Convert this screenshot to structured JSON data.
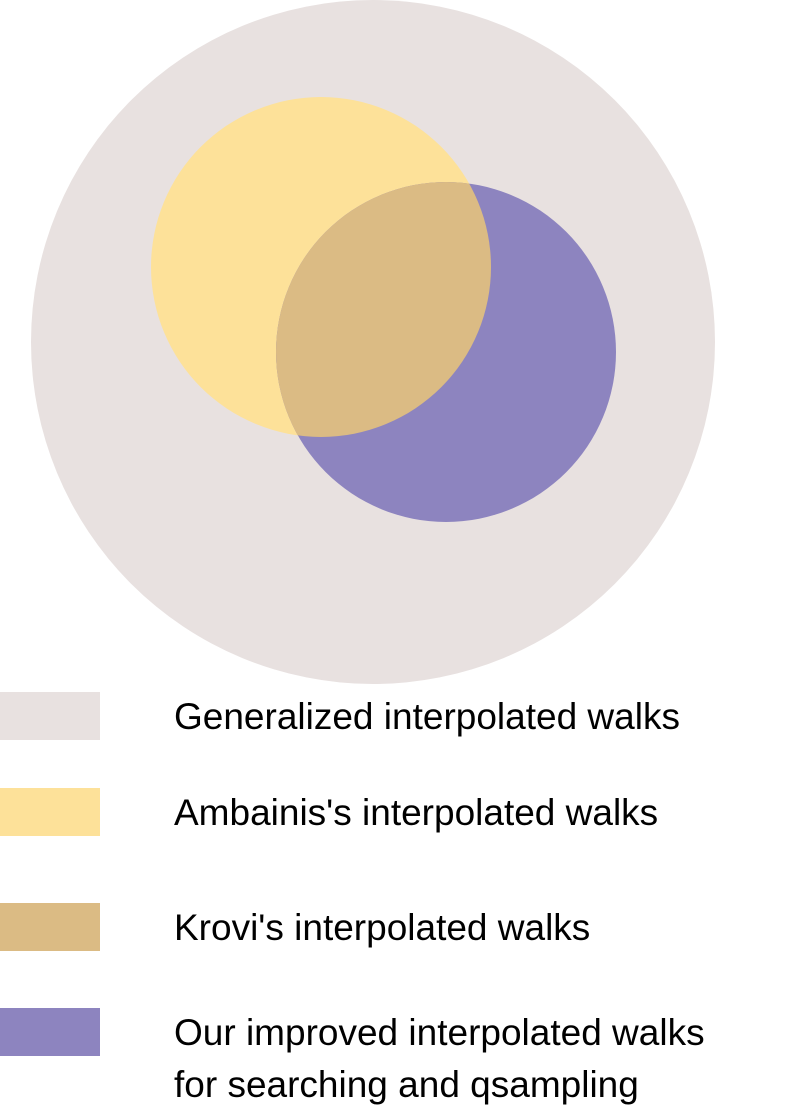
{
  "legend": [
    {
      "label": [
        "Generalized interpolated walks"
      ],
      "color": "#e8e1e0"
    },
    {
      "label": [
        "Ambainis's interpolated walks"
      ],
      "color": "#fde199"
    },
    {
      "label": [
        "Krovi's interpolated walks"
      ],
      "color": "#dbbb84"
    },
    {
      "label": [
        "Our improved interpolated walks",
        "for searching and qsampling"
      ],
      "color": "#8d84bf"
    }
  ]
}
